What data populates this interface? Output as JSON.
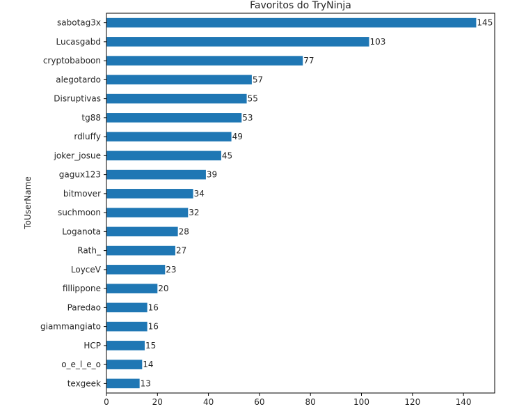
{
  "chart_data": {
    "type": "bar",
    "orientation": "horizontal",
    "title": "Favoritos do TryNinja",
    "xlabel": "",
    "ylabel": "ToUserName",
    "categories": [
      "sabotag3x",
      "Lucasgabd",
      "cryptobaboon",
      "alegotardo",
      "Disruptivas",
      "tg88",
      "rdluffy",
      "joker_josue",
      "gagux123",
      "bitmover",
      "suchmoon",
      "Loganota",
      "Rath_",
      "LoyceV",
      "fillippone",
      "Paredao",
      "giammangiato",
      "HCP",
      "o_e_l_e_o",
      "texgeek"
    ],
    "values": [
      145,
      103,
      77,
      57,
      55,
      53,
      49,
      45,
      39,
      34,
      32,
      28,
      27,
      23,
      20,
      16,
      16,
      15,
      14,
      13
    ],
    "xlim": [
      0,
      152.25
    ],
    "xticks": [
      0,
      20,
      40,
      60,
      80,
      100,
      120,
      140
    ],
    "grid": false,
    "bar_color": "#1f77b4"
  }
}
